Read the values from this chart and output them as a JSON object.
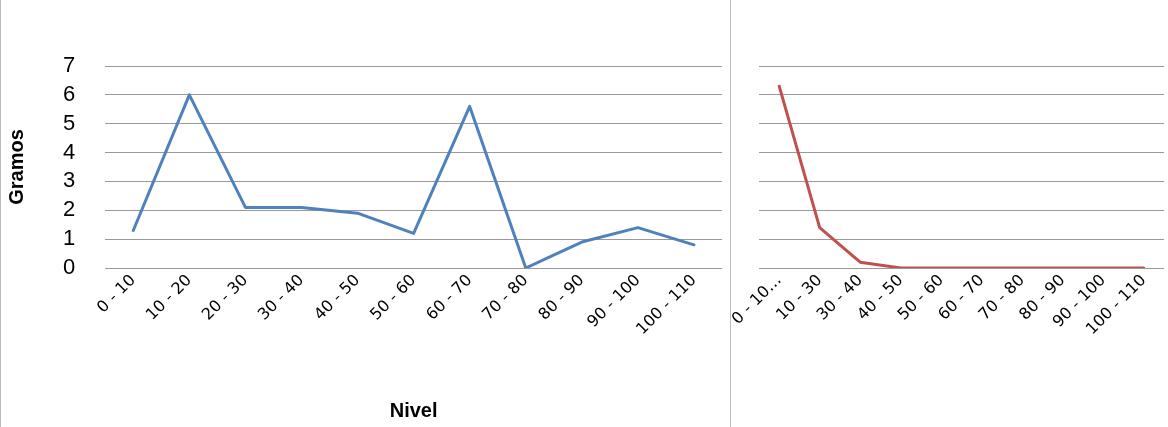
{
  "chart_data": [
    {
      "type": "line",
      "xlabel": "Nivel",
      "ylabel": "Gramos",
      "categories": [
        "0 - 10",
        "10 - 20",
        "20 - 30",
        "30 - 40",
        "40 - 50",
        "50 - 60",
        "60 - 70",
        "70 - 80",
        "80 - 90",
        "90 - 100",
        "100 - 110"
      ],
      "series": [
        {
          "color": "#4f81bd",
          "values": [
            1.3,
            6,
            2.1,
            2.1,
            1.9,
            1.2,
            5.6,
            0,
            0.9,
            1.4,
            0.8
          ]
        }
      ],
      "ylim": [
        0,
        7
      ],
      "yticks": [
        0,
        1,
        2,
        3,
        4,
        5,
        6,
        7
      ],
      "grid": "y",
      "legend": false,
      "marker": "none"
    },
    {
      "type": "line",
      "categories": [
        "0 - 10…",
        "10 - 30",
        "30 - 40",
        "40 - 50",
        "50 - 60",
        "60 - 70",
        "70 - 80",
        "80 - 90",
        "90 - 100",
        "100 - 110"
      ],
      "series": [
        {
          "color": "#c0504d",
          "values": [
            6.3,
            1.4,
            0.2,
            0,
            0,
            0,
            0,
            0,
            0,
            0
          ]
        }
      ],
      "ylim": [
        0,
        7
      ],
      "yticks": [
        0,
        1,
        2,
        3,
        4,
        5,
        6,
        7
      ],
      "grid": "y",
      "legend": false,
      "marker": "none",
      "tick_labels": "x"
    }
  ]
}
